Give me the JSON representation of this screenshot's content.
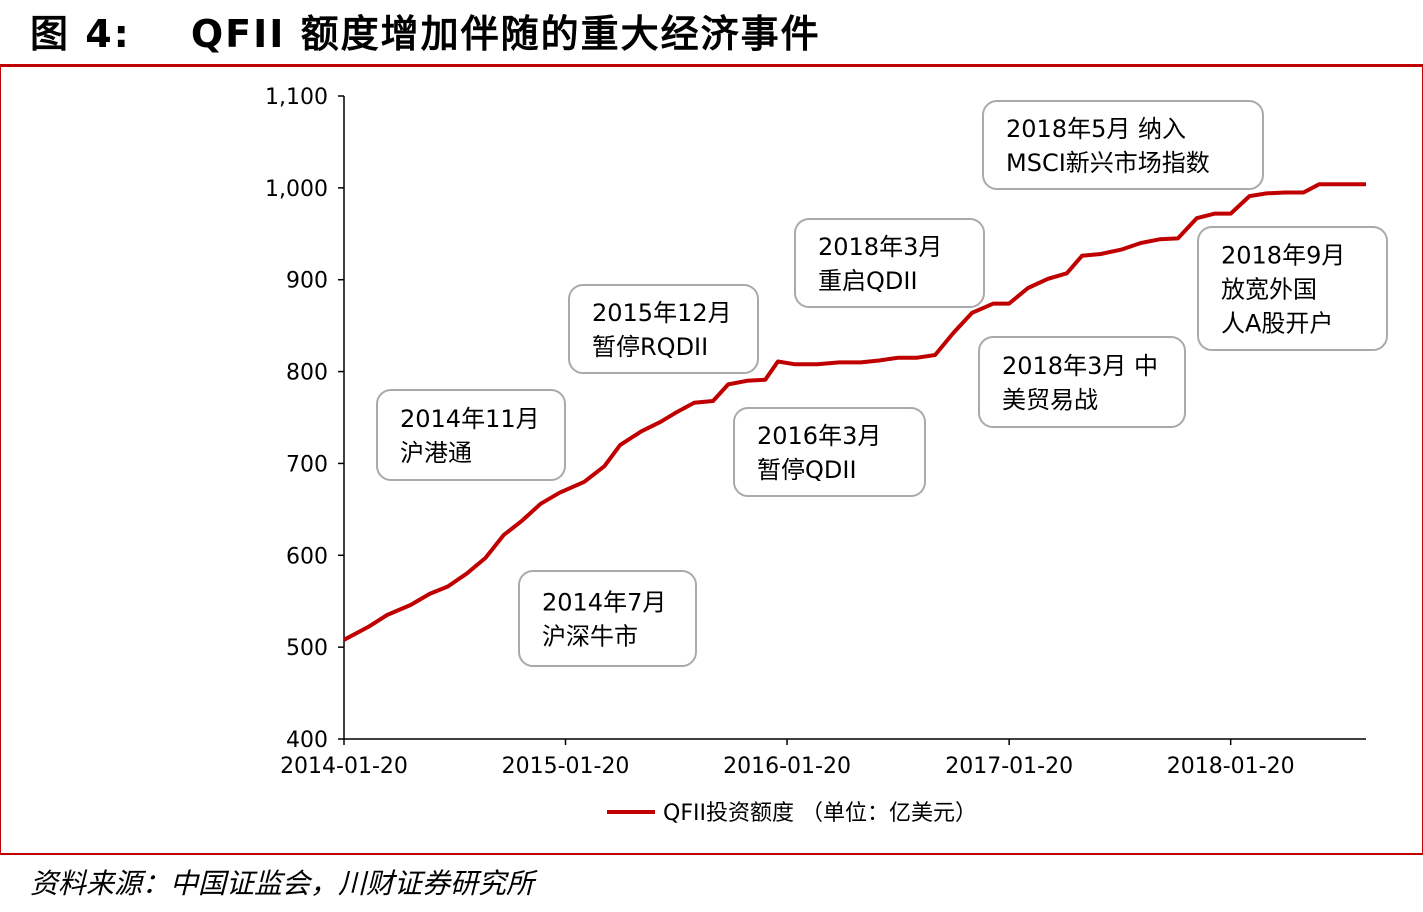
{
  "header": {
    "figure_number": "图 4:",
    "title": "QFII 额度增加伴随的重大经济事件"
  },
  "source": "资料来源：中国证监会，川财证券研究所",
  "colors": {
    "accent": "#c00000",
    "box_border": "#aaaaaa"
  },
  "chart_data": {
    "type": "line",
    "x_label": "",
    "y_label": "",
    "x_ticks": [
      "2014-01-20",
      "2015-01-20",
      "2016-01-20",
      "2017-01-20",
      "2018-01-20"
    ],
    "y_ticks": [
      "400",
      "500",
      "600",
      "700",
      "800",
      "900",
      "1,000",
      "1,100"
    ],
    "ylim": [
      400,
      1100
    ],
    "xlim": [
      "2014-01-20",
      "2018-08-31"
    ],
    "grid": false,
    "legend_position": "bottom",
    "series": [
      {
        "name": "QFII投资额度 （单位：亿美元）",
        "color": "#c00000",
        "points": [
          [
            "2014-01-20",
            508
          ],
          [
            "2014-03-01",
            522
          ],
          [
            "2014-04-01",
            535
          ],
          [
            "2014-05-10",
            546
          ],
          [
            "2014-06-10",
            558
          ],
          [
            "2014-07-10",
            566
          ],
          [
            "2014-08-10",
            580
          ],
          [
            "2014-09-10",
            597
          ],
          [
            "2014-10-10",
            622
          ],
          [
            "2014-11-10",
            638
          ],
          [
            "2014-12-10",
            656
          ],
          [
            "2015-01-10",
            668
          ],
          [
            "2015-02-20",
            680
          ],
          [
            "2015-03-25",
            697
          ],
          [
            "2015-04-20",
            720
          ],
          [
            "2015-05-25",
            735
          ],
          [
            "2015-06-25",
            745
          ],
          [
            "2015-07-20",
            755
          ],
          [
            "2015-08-20",
            766
          ],
          [
            "2015-09-20",
            768
          ],
          [
            "2015-10-15",
            786
          ],
          [
            "2015-11-15",
            790
          ],
          [
            "2015-12-15",
            791
          ],
          [
            "2016-01-05",
            811
          ],
          [
            "2016-02-01",
            808
          ],
          [
            "2016-03-10",
            808
          ],
          [
            "2016-04-15",
            810
          ],
          [
            "2016-05-20",
            810
          ],
          [
            "2016-06-20",
            812
          ],
          [
            "2016-07-20",
            815
          ],
          [
            "2016-08-20",
            815
          ],
          [
            "2016-09-20",
            818
          ],
          [
            "2016-10-20",
            842
          ],
          [
            "2016-11-20",
            864
          ],
          [
            "2016-12-25",
            874
          ],
          [
            "2017-01-20",
            874
          ],
          [
            "2017-02-20",
            891
          ],
          [
            "2017-03-25",
            901
          ],
          [
            "2017-04-25",
            907
          ],
          [
            "2017-05-20",
            926
          ],
          [
            "2017-06-20",
            928
          ],
          [
            "2017-07-25",
            933
          ],
          [
            "2017-08-25",
            940
          ],
          [
            "2017-09-25",
            944
          ],
          [
            "2017-10-25",
            945
          ],
          [
            "2017-11-25",
            967
          ],
          [
            "2017-12-25",
            972
          ],
          [
            "2018-01-20",
            972
          ],
          [
            "2018-02-20",
            991
          ],
          [
            "2018-03-20",
            994
          ],
          [
            "2018-04-20",
            995
          ],
          [
            "2018-05-20",
            995
          ],
          [
            "2018-06-15",
            1004
          ],
          [
            "2018-07-15",
            1004
          ],
          [
            "2018-08-31",
            1004
          ]
        ]
      }
    ],
    "annotations": [
      {
        "lines": [
          "2014年7月",
          "沪深牛市"
        ]
      },
      {
        "lines": [
          "2014年11月",
          "沪港通"
        ]
      },
      {
        "lines": [
          "2015年12月",
          "暂停RQDII"
        ]
      },
      {
        "lines": [
          "2016年3月",
          "暂停QDII"
        ]
      },
      {
        "lines": [
          "2018年3月",
          "重启QDII"
        ]
      },
      {
        "lines": [
          "2018年3月 中",
          "美贸易战"
        ]
      },
      {
        "lines": [
          "2018年5月 纳入",
          "MSCI新兴市场指数"
        ]
      },
      {
        "lines": [
          "2018年9月",
          "放宽外国",
          "人A股开户"
        ]
      }
    ]
  }
}
